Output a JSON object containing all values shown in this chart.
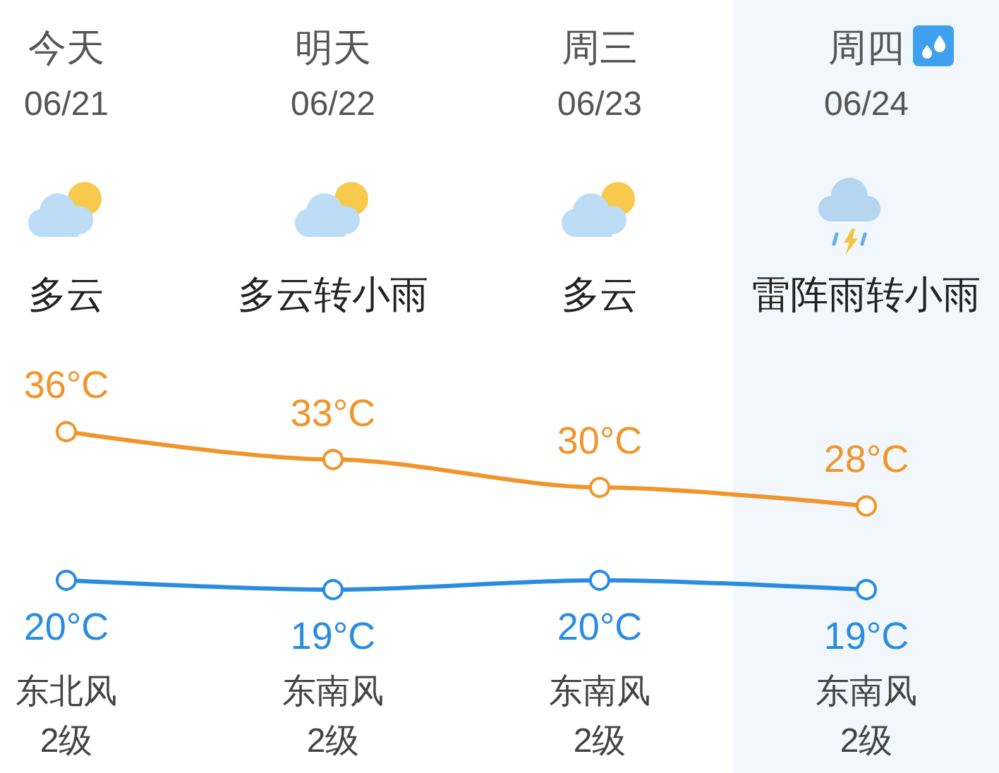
{
  "chart_data": {
    "type": "line",
    "categories": [
      "今天\n06/21\n多云",
      "明天\n06/22\n多云转小雨",
      "周三\n06/23\n多云",
      "周四\n06/24\n雷阵雨转小雨"
    ],
    "series": [
      {
        "color": "#f0952b",
        "values": [
          36,
          33,
          30,
          28
        ],
        "value_labels": [
          "36°C",
          "33°C",
          "30°C",
          "28°C"
        ]
      },
      {
        "color": "#2a8ce0",
        "values": [
          20,
          19,
          20,
          19
        ],
        "value_labels": [
          "20°C",
          "19°C",
          "20°C",
          "19°C"
        ]
      }
    ],
    "annotations": [
      "东北风\n2级",
      "东南风\n2级",
      "东南风\n2级",
      "东南风\n2级"
    ],
    "bands": [
      {
        "axis": "x",
        "from": "周四\n06/24\n雷阵雨转小雨",
        "to": "周四\n06/24\n雷阵雨转小雨",
        "color": "#f1f7fd"
      }
    ],
    "marker": "circle",
    "grid": false,
    "tick_labels": "x"
  }
}
